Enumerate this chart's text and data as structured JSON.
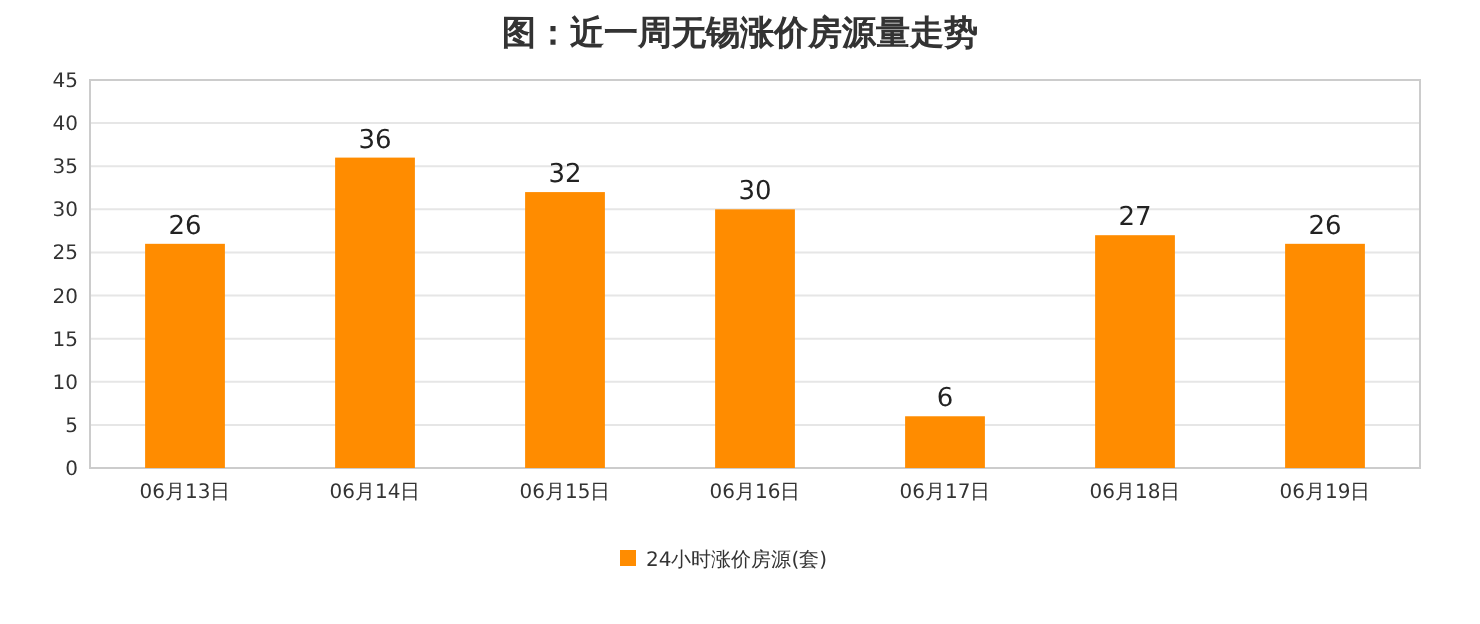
{
  "chart_data": {
    "type": "bar",
    "title": "图：近一周无锡涨价房源量走势",
    "categories": [
      "06月13日",
      "06月14日",
      "06月15日",
      "06月16日",
      "06月17日",
      "06月18日",
      "06月19日"
    ],
    "series": [
      {
        "name": "24小时涨价房源(套)",
        "color": "#ff8c00",
        "values": [
          26,
          36,
          32,
          30,
          6,
          27,
          26
        ]
      }
    ],
    "ylim": [
      0,
      45
    ],
    "yticks": [
      0,
      5,
      10,
      15,
      20,
      25,
      30,
      35,
      40,
      45
    ],
    "grid": "y",
    "legend": "bottom",
    "data_labels": true
  }
}
